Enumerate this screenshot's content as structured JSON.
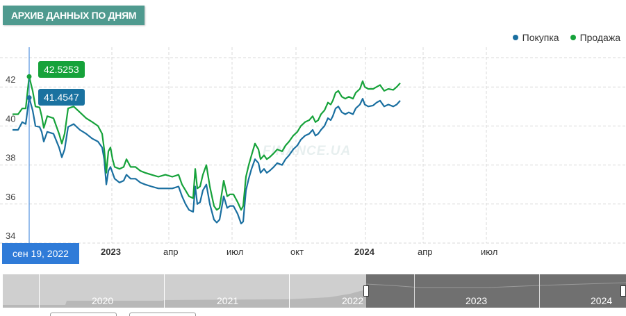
{
  "header": {
    "tab_label": "АРХИВ ДАННЫХ ПО ДНЯМ"
  },
  "watermark": "FINANCE.UA",
  "crosshair": {
    "date_label": "сен 19, 2022",
    "sell_value": "42.5253",
    "buy_value": "41.4547"
  },
  "navigator": {
    "years": [
      "2020",
      "2021",
      "2022",
      "2023",
      "2024"
    ]
  },
  "colors": {
    "buy": "#1a6fa0",
    "sell": "#16a23a",
    "tab": "#4f9a8f",
    "crosshair": "#2f7bd8"
  },
  "chart_data": {
    "type": "line",
    "title": "",
    "xlabel": "",
    "ylabel": "",
    "y_ticks": [
      "34",
      "36",
      "38",
      "40",
      "42"
    ],
    "ylim": [
      34,
      43.5
    ],
    "x_ticks": [
      {
        "label": "2023",
        "t": 103,
        "bold": true
      },
      {
        "label": "апр",
        "t": 193,
        "bold": false
      },
      {
        "label": "июл",
        "t": 284,
        "bold": false
      },
      {
        "label": "окт",
        "t": 376,
        "bold": false
      },
      {
        "label": "2024",
        "t": 468,
        "bold": true
      },
      {
        "label": "апр",
        "t": 559,
        "bold": false
      },
      {
        "label": "июл",
        "t": 650,
        "bold": false
      }
    ],
    "xlim": [
      0,
      736
    ],
    "grid": true,
    "legend": "top-right",
    "series": [
      {
        "name": "Покупка",
        "points": [
          [
            -24,
            39.8
          ],
          [
            -16,
            39.8
          ],
          [
            -10,
            40.2
          ],
          [
            -5,
            40.1
          ],
          [
            0,
            41.45
          ],
          [
            5,
            40.8
          ],
          [
            9,
            40.0
          ],
          [
            15,
            39.95
          ],
          [
            18,
            39.7
          ],
          [
            21,
            39.2
          ],
          [
            26,
            39.7
          ],
          [
            35,
            39.6
          ],
          [
            43,
            38.9
          ],
          [
            47,
            38.4
          ],
          [
            51,
            38.8
          ],
          [
            56,
            39.95
          ],
          [
            64,
            40.1
          ],
          [
            73,
            39.8
          ],
          [
            82,
            39.6
          ],
          [
            91,
            39.35
          ],
          [
            99,
            39.2
          ],
          [
            105,
            38.9
          ],
          [
            108,
            38.3
          ],
          [
            111,
            37.0
          ],
          [
            114,
            37.7
          ],
          [
            117,
            37.9
          ],
          [
            120,
            37.6
          ],
          [
            123,
            37.3
          ],
          [
            130,
            37.1
          ],
          [
            136,
            37.2
          ],
          [
            140,
            37.5
          ],
          [
            146,
            37.3
          ],
          [
            153,
            37.3
          ],
          [
            160,
            37.1
          ],
          [
            167,
            37.0
          ],
          [
            176,
            36.9
          ],
          [
            186,
            36.8
          ],
          [
            196,
            36.8
          ],
          [
            206,
            36.8
          ],
          [
            215,
            36.9
          ],
          [
            220,
            36.4
          ],
          [
            225,
            36.0
          ],
          [
            230,
            35.7
          ],
          [
            236,
            35.6
          ],
          [
            239,
            36.9
          ],
          [
            242,
            36.0
          ],
          [
            246,
            36.1
          ],
          [
            250,
            36.7
          ],
          [
            255,
            37.0
          ],
          [
            260,
            36.0
          ],
          [
            266,
            35.2
          ],
          [
            270,
            35.05
          ],
          [
            274,
            35.2
          ],
          [
            280,
            36.4
          ],
          [
            285,
            35.8
          ],
          [
            289,
            35.9
          ],
          [
            294,
            35.9
          ],
          [
            300,
            35.5
          ],
          [
            305,
            35.0
          ],
          [
            308,
            35.1
          ],
          [
            312,
            36.7
          ],
          [
            316,
            37.3
          ],
          [
            320,
            37.8
          ],
          [
            325,
            38.3
          ],
          [
            330,
            38.1
          ],
          [
            333,
            37.6
          ],
          [
            338,
            37.8
          ],
          [
            342,
            37.6
          ],
          [
            346,
            37.7
          ],
          [
            352,
            37.9
          ],
          [
            357,
            38.1
          ],
          [
            364,
            38.0
          ],
          [
            369,
            38.3
          ],
          [
            374,
            38.5
          ],
          [
            380,
            38.8
          ],
          [
            386,
            39.0
          ],
          [
            391,
            39.3
          ],
          [
            397,
            39.5
          ],
          [
            403,
            39.6
          ],
          [
            408,
            39.8
          ],
          [
            412,
            39.5
          ],
          [
            416,
            39.6
          ],
          [
            420,
            39.8
          ],
          [
            425,
            40.0
          ],
          [
            430,
            40.4
          ],
          [
            434,
            40.3
          ],
          [
            437,
            40.5
          ],
          [
            441,
            40.9
          ],
          [
            445,
            41.0
          ],
          [
            450,
            40.7
          ],
          [
            455,
            40.6
          ],
          [
            460,
            40.7
          ],
          [
            466,
            40.6
          ],
          [
            470,
            40.9
          ],
          [
            476,
            41.1
          ],
          [
            480,
            41.4
          ],
          [
            483,
            41.1
          ],
          [
            488,
            41.0
          ],
          [
            495,
            41.05
          ],
          [
            500,
            41.2
          ],
          [
            505,
            41.3
          ],
          [
            511,
            41.0
          ],
          [
            517,
            41.1
          ],
          [
            524,
            41.0
          ],
          [
            529,
            41.1
          ],
          [
            534,
            41.3
          ]
        ]
      },
      {
        "name": "Продажа",
        "points": [
          [
            -24,
            40.6
          ],
          [
            -16,
            40.6
          ],
          [
            -10,
            40.9
          ],
          [
            -5,
            40.9
          ],
          [
            0,
            42.53
          ],
          [
            5,
            41.8
          ],
          [
            9,
            41.0
          ],
          [
            15,
            40.95
          ],
          [
            18,
            40.5
          ],
          [
            21,
            39.9
          ],
          [
            26,
            40.5
          ],
          [
            35,
            40.4
          ],
          [
            43,
            39.6
          ],
          [
            47,
            39.1
          ],
          [
            51,
            39.6
          ],
          [
            56,
            40.9
          ],
          [
            64,
            41.0
          ],
          [
            73,
            40.7
          ],
          [
            82,
            40.4
          ],
          [
            91,
            40.2
          ],
          [
            99,
            40.0
          ],
          [
            105,
            39.6
          ],
          [
            108,
            38.8
          ],
          [
            111,
            37.6
          ],
          [
            114,
            38.7
          ],
          [
            117,
            38.9
          ],
          [
            120,
            38.3
          ],
          [
            123,
            37.9
          ],
          [
            130,
            37.8
          ],
          [
            136,
            37.9
          ],
          [
            140,
            38.3
          ],
          [
            146,
            37.9
          ],
          [
            153,
            37.9
          ],
          [
            160,
            37.7
          ],
          [
            167,
            37.6
          ],
          [
            176,
            37.5
          ],
          [
            186,
            37.4
          ],
          [
            196,
            37.5
          ],
          [
            206,
            37.4
          ],
          [
            215,
            37.5
          ],
          [
            220,
            37.0
          ],
          [
            225,
            36.7
          ],
          [
            230,
            36.4
          ],
          [
            236,
            36.3
          ],
          [
            239,
            37.8
          ],
          [
            242,
            36.8
          ],
          [
            246,
            36.9
          ],
          [
            250,
            37.5
          ],
          [
            255,
            38.0
          ],
          [
            260,
            36.9
          ],
          [
            266,
            35.9
          ],
          [
            270,
            35.7
          ],
          [
            274,
            35.8
          ],
          [
            280,
            37.2
          ],
          [
            285,
            36.4
          ],
          [
            289,
            36.5
          ],
          [
            294,
            36.5
          ],
          [
            300,
            36.1
          ],
          [
            305,
            35.7
          ],
          [
            308,
            35.9
          ],
          [
            312,
            37.4
          ],
          [
            316,
            38.0
          ],
          [
            320,
            38.5
          ],
          [
            325,
            39.1
          ],
          [
            330,
            38.8
          ],
          [
            333,
            38.3
          ],
          [
            338,
            38.5
          ],
          [
            342,
            38.3
          ],
          [
            346,
            38.4
          ],
          [
            352,
            38.6
          ],
          [
            357,
            38.8
          ],
          [
            364,
            38.7
          ],
          [
            369,
            39.0
          ],
          [
            374,
            39.2
          ],
          [
            380,
            39.5
          ],
          [
            386,
            39.7
          ],
          [
            391,
            40.0
          ],
          [
            397,
            40.2
          ],
          [
            403,
            40.3
          ],
          [
            408,
            40.5
          ],
          [
            412,
            40.2
          ],
          [
            416,
            40.3
          ],
          [
            420,
            40.6
          ],
          [
            425,
            40.8
          ],
          [
            430,
            41.2
          ],
          [
            434,
            41.1
          ],
          [
            437,
            41.3
          ],
          [
            441,
            41.7
          ],
          [
            445,
            41.8
          ],
          [
            450,
            41.5
          ],
          [
            455,
            41.4
          ],
          [
            460,
            41.5
          ],
          [
            466,
            41.4
          ],
          [
            470,
            41.7
          ],
          [
            476,
            41.9
          ],
          [
            480,
            42.3
          ],
          [
            483,
            42.0
          ],
          [
            488,
            41.9
          ],
          [
            495,
            41.9
          ],
          [
            500,
            42.0
          ],
          [
            505,
            42.1
          ],
          [
            511,
            41.8
          ],
          [
            517,
            41.9
          ],
          [
            524,
            41.85
          ],
          [
            529,
            42.0
          ],
          [
            534,
            42.2
          ]
        ]
      }
    ]
  }
}
